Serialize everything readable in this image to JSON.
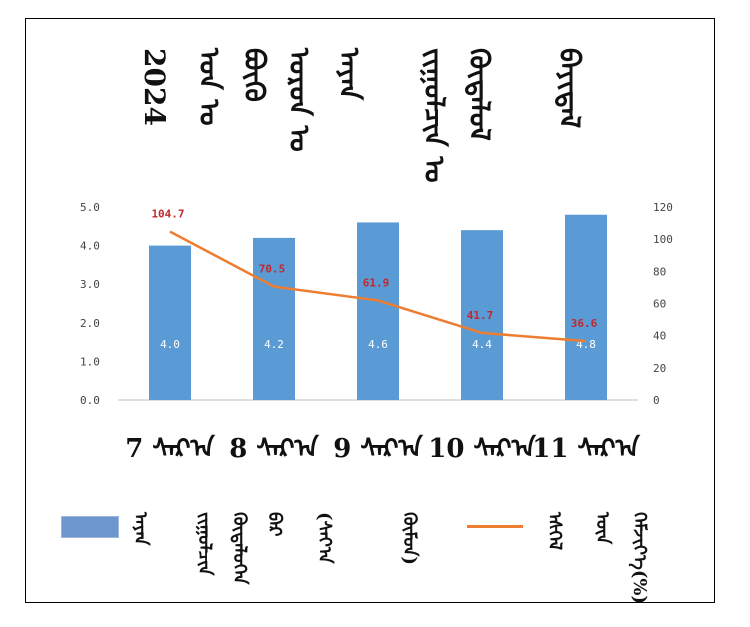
{
  "colors": {
    "bar": "#5b9bd5",
    "line": "#ed7d31",
    "line_label": "#c0282d",
    "bar_label": "#ffffff"
  },
  "title_columns": [
    "2024",
    "ᠣᠨ ᠤ",
    "ᠪᠦᠬᠦ",
    "ᠣᠷᠣᠨ ᠤ",
    "ᠠᠶᠠᠨ",
    "ᠵᠢᠭᠤᠯᠴᠢᠨ ᠤ",
    "ᠬᠥᠳᠡᠯᠦᠯ",
    "ᠪᠠᠶᠢᠳᠠᠯ"
  ],
  "legend": {
    "bar_text": [
      "ᠠᠶᠠᠨ",
      "ᠵᠢᠭᠤᠯᠴᠢᠨ",
      "ᠬᠥᠳᠡᠯᠦᠭᠡᠨ",
      "ᠪᠡᠷ",
      "(ᠰᠠᠶ᠎ᠠ",
      "ᠬᠦᠮᠦᠨ)"
    ],
    "line_text": [
      "ᠡᠰᠬᠡᠯ",
      "ᠦᠨ",
      "ᠬᠡᠮᠵᠢᠶ᠎ᠡ(%)"
    ]
  },
  "chart_data": {
    "type": "bar",
    "categories": [
      "7 ᠰᠠᠷ᠎ᠠ",
      "8 ᠰᠠᠷ᠎ᠠ",
      "9 ᠰᠠᠷ᠎ᠠ",
      "10 ᠰᠠᠷ᠎ᠠ",
      "11 ᠰᠠᠷ᠎ᠠ"
    ],
    "bar_values": [
      4.0,
      4.2,
      4.6,
      4.4,
      4.8
    ],
    "bar_labels": [
      "4.0",
      "4.2",
      "4.6",
      "4.4",
      "4.8"
    ],
    "line_values": [
      104.7,
      70.5,
      61.9,
      41.7,
      36.6
    ],
    "line_labels": [
      "104.7",
      "70.5",
      "61.9",
      "41.7",
      "36.6"
    ],
    "left_axis": {
      "ylim": [
        0,
        5
      ],
      "ticks": [
        "0.0",
        "1.0",
        "2.0",
        "3.0",
        "4.0",
        "5.0"
      ]
    },
    "right_axis": {
      "ylim": [
        0,
        120
      ],
      "ticks": [
        "0",
        "20",
        "40",
        "60",
        "80",
        "100",
        "120"
      ]
    },
    "grid": false,
    "legend_position": "bottom"
  }
}
